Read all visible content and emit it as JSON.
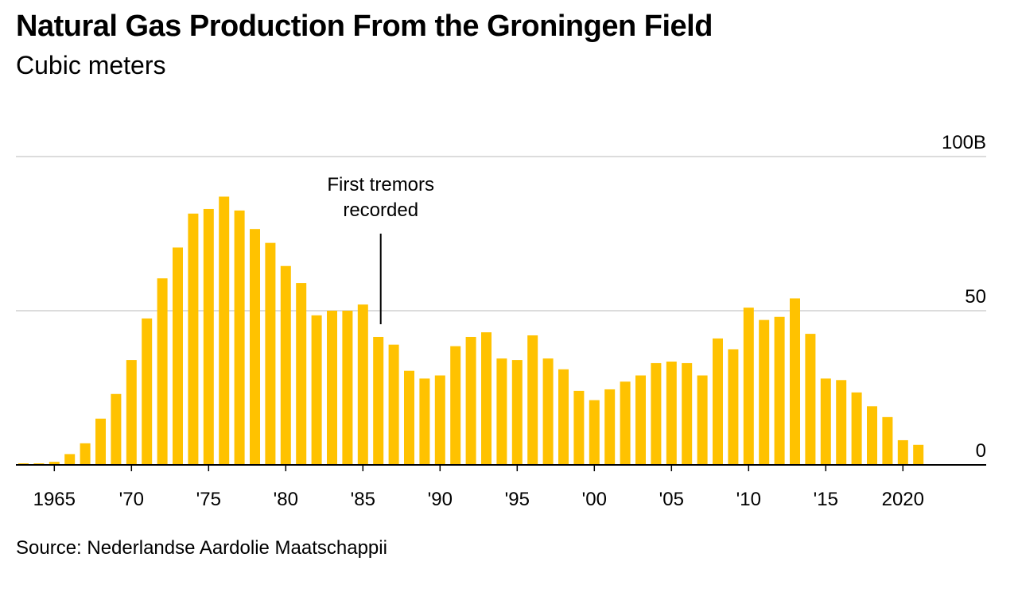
{
  "chart_data": {
    "type": "bar",
    "title": "Natural Gas Production From the Groningen Field",
    "subtitle": "Cubic meters",
    "source": "Source: Nederlandse Aardolie Maatschappii",
    "color": "#ffc200",
    "ylim": [
      0,
      100
    ],
    "grid": true,
    "y_ticks": [
      {
        "value": 0,
        "label": "0"
      },
      {
        "value": 50,
        "label": "50"
      },
      {
        "value": 100,
        "label": "100B"
      }
    ],
    "x_ticks": [
      {
        "year": 1965,
        "label": "1965"
      },
      {
        "year": 1970,
        "label": "'70"
      },
      {
        "year": 1975,
        "label": "'75"
      },
      {
        "year": 1980,
        "label": "'80"
      },
      {
        "year": 1985,
        "label": "'85"
      },
      {
        "year": 1990,
        "label": "'90"
      },
      {
        "year": 1995,
        "label": "'95"
      },
      {
        "year": 2000,
        "label": "'00"
      },
      {
        "year": 2005,
        "label": "'05"
      },
      {
        "year": 2010,
        "label": "'10"
      },
      {
        "year": 2015,
        "label": "'15"
      },
      {
        "year": 2020,
        "label": "2020"
      }
    ],
    "x_range": [
      1963,
      2025
    ],
    "years": [
      1963,
      1964,
      1965,
      1966,
      1967,
      1968,
      1969,
      1970,
      1971,
      1972,
      1973,
      1974,
      1975,
      1976,
      1977,
      1978,
      1979,
      1980,
      1981,
      1982,
      1983,
      1984,
      1985,
      1986,
      1987,
      1988,
      1989,
      1990,
      1991,
      1992,
      1993,
      1994,
      1995,
      1996,
      1997,
      1998,
      1999,
      2000,
      2001,
      2002,
      2003,
      2004,
      2005,
      2006,
      2007,
      2008,
      2009,
      2010,
      2011,
      2012,
      2013,
      2014,
      2015,
      2016,
      2017,
      2018,
      2019,
      2020,
      2021
    ],
    "values": [
      0.5,
      0.5,
      1,
      3.5,
      7,
      15,
      23,
      34,
      47.5,
      60.5,
      70.5,
      81.5,
      83,
      87,
      82.5,
      76.5,
      72,
      64.5,
      59,
      48.5,
      50,
      50,
      52,
      41.5,
      39,
      30.5,
      28,
      29,
      38.5,
      41.5,
      43,
      34.5,
      34,
      42,
      34.5,
      31,
      24,
      21,
      24.5,
      27,
      29,
      33,
      33.5,
      33,
      29,
      41,
      37.5,
      51,
      47,
      48,
      54,
      42.5,
      28,
      27.5,
      23.5,
      19,
      15.5,
      8,
      6.5
    ],
    "annotation": {
      "year": 1986,
      "lines": [
        "First tremors",
        "recorded"
      ]
    }
  }
}
